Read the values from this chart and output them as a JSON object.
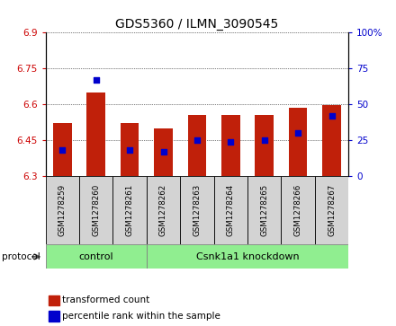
{
  "title": "GDS5360 / ILMN_3090545",
  "samples": [
    "GSM1278259",
    "GSM1278260",
    "GSM1278261",
    "GSM1278262",
    "GSM1278263",
    "GSM1278264",
    "GSM1278265",
    "GSM1278266",
    "GSM1278267"
  ],
  "transformed_counts": [
    6.52,
    6.65,
    6.52,
    6.5,
    6.555,
    6.555,
    6.555,
    6.585,
    6.595
  ],
  "percentile_ranks": [
    18,
    67,
    18,
    17,
    25,
    24,
    25,
    30,
    42
  ],
  "ylim_left": [
    6.3,
    6.9
  ],
  "ylim_right": [
    0,
    100
  ],
  "yticks_left": [
    6.3,
    6.45,
    6.6,
    6.75,
    6.9
  ],
  "yticks_right": [
    0,
    25,
    50,
    75,
    100
  ],
  "ytick_labels_left": [
    "6.3",
    "6.45",
    "6.6",
    "6.75",
    "6.9"
  ],
  "ytick_labels_right": [
    "0",
    "25",
    "50",
    "75",
    "100%"
  ],
  "bar_bottom": 6.3,
  "bar_color": "#c0200a",
  "dot_color": "#0000cc",
  "control_count": 3,
  "knockdown_count": 6,
  "control_label": "control",
  "knockdown_label": "Csnk1a1 knockdown",
  "protocol_label": "protocol",
  "legend_bar_label": "transformed count",
  "legend_dot_label": "percentile rank within the sample",
  "tick_label_color_left": "#cc0000",
  "tick_label_color_right": "#0000cc",
  "sample_box_color": "#d3d3d3",
  "protocol_color": "#90ee90"
}
